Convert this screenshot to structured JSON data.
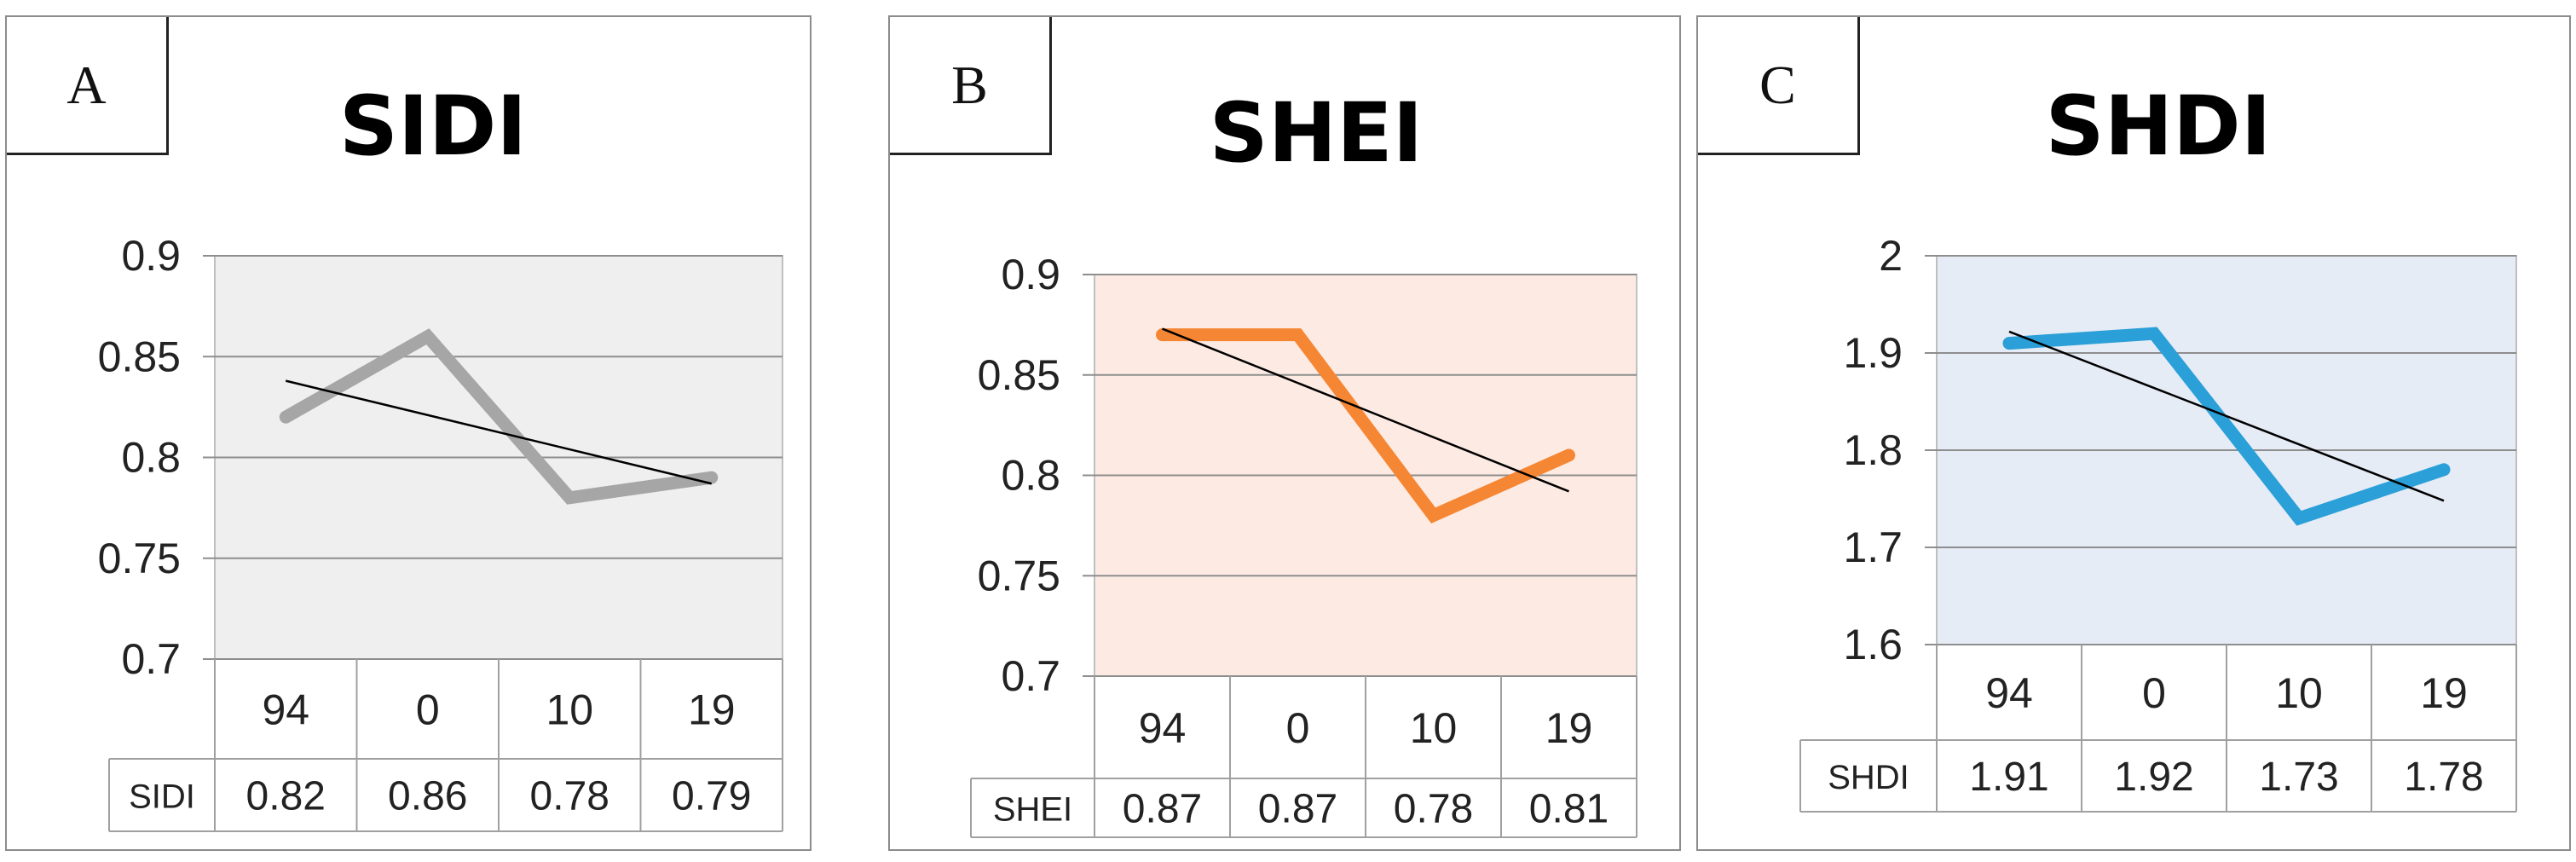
{
  "panels": [
    {
      "letter": "A",
      "title": "SIDI",
      "colors": {
        "line": "#a6a6a6",
        "plot_bg": "#efefef"
      },
      "chart_data": {
        "type": "line",
        "title": "SIDI",
        "categories": [
          "94",
          "0",
          "10",
          "19"
        ],
        "series": [
          {
            "name": "SIDI",
            "values": [
              0.82,
              0.86,
              0.78,
              0.79
            ]
          }
        ],
        "trendline": {
          "type": "linear",
          "shown": true
        },
        "ylim": [
          0.7,
          0.9
        ],
        "yticks": [
          "0.9",
          "0.85",
          "0.8",
          "0.75",
          "0.7"
        ],
        "ytick_values": [
          0.9,
          0.85,
          0.8,
          0.75,
          0.7
        ],
        "data_table": {
          "row_label": "SIDI",
          "cells": [
            "0.82",
            "0.86",
            "0.78",
            "0.79"
          ]
        },
        "grid": true,
        "legend": "none"
      }
    },
    {
      "letter": "B",
      "title": "SHEI",
      "colors": {
        "line": "#f58634",
        "plot_bg": "#fdebe3"
      },
      "chart_data": {
        "type": "line",
        "title": "SHEI",
        "categories": [
          "94",
          "0",
          "10",
          "19"
        ],
        "series": [
          {
            "name": "SHEI",
            "values": [
              0.87,
              0.87,
              0.78,
              0.81
            ]
          }
        ],
        "trendline": {
          "type": "linear",
          "shown": true
        },
        "ylim": [
          0.7,
          0.9
        ],
        "yticks": [
          "0.9",
          "0.85",
          "0.8",
          "0.75",
          "0.7"
        ],
        "ytick_values": [
          0.9,
          0.85,
          0.8,
          0.75,
          0.7
        ],
        "data_table": {
          "row_label": "SHEI",
          "cells": [
            "0.87",
            "0.87",
            "0.78",
            "0.81"
          ]
        },
        "grid": true,
        "legend": "none"
      }
    },
    {
      "letter": "C",
      "title": "SHDI",
      "colors": {
        "line": "#2a9fd8",
        "plot_bg": "#e6ecf6"
      },
      "chart_data": {
        "type": "line",
        "title": "SHDI",
        "categories": [
          "94",
          "0",
          "10",
          "19"
        ],
        "series": [
          {
            "name": "SHDI",
            "values": [
              1.91,
              1.92,
              1.73,
              1.78
            ]
          }
        ],
        "trendline": {
          "type": "linear",
          "shown": true
        },
        "ylim": [
          1.6,
          2.0
        ],
        "yticks": [
          "2",
          "1.9",
          "1.8",
          "1.7",
          "1.6"
        ],
        "ytick_values": [
          2.0,
          1.9,
          1.8,
          1.7,
          1.6
        ],
        "data_table": {
          "row_label": "SHDI",
          "cells": [
            "1.91",
            "1.92",
            "1.73",
            "1.78"
          ]
        },
        "grid": true,
        "legend": "none"
      }
    }
  ]
}
